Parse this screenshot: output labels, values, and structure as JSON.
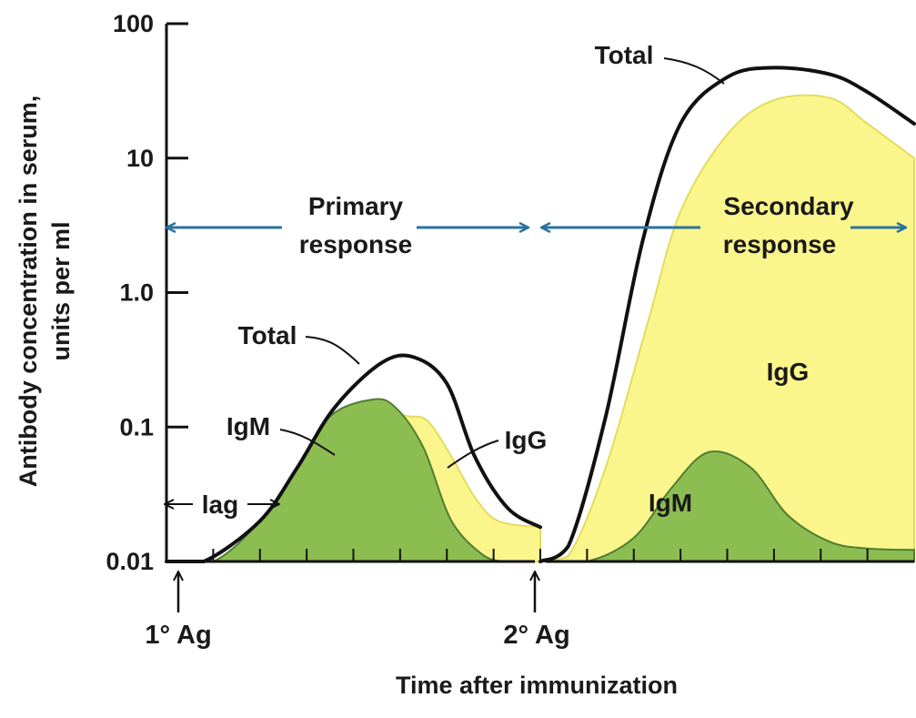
{
  "chart_data": {
    "type": "area",
    "yscale": "log",
    "ylim": [
      0.01,
      100
    ],
    "xlim": [
      0,
      16
    ],
    "xlabel": "Time after immunization",
    "ylabel_lines": [
      "Antibody concentration in serum,",
      "units per ml"
    ],
    "y_ticks": [
      {
        "value": 100,
        "label": "100"
      },
      {
        "value": 10,
        "label": "10"
      },
      {
        "value": 1,
        "label": "1.0"
      },
      {
        "value": 0.1,
        "label": "0.1"
      },
      {
        "value": 0.01,
        "label": "0.01"
      }
    ],
    "x_ticks": [
      1,
      2,
      3,
      4,
      5,
      6,
      7,
      8,
      9,
      10,
      11,
      12,
      13,
      14,
      15
    ],
    "colors": {
      "igm": "#8cbd50",
      "igm_edge": "#4f7d33",
      "igg": "#fbf68c",
      "igg_edge": "#e4dc5c",
      "total": "#111111",
      "arrow": "#2b73a0"
    },
    "primary": {
      "range": [
        0,
        8
      ],
      "total": {
        "x": [
          0,
          0.8,
          2,
          2.8,
          3.6,
          4.6,
          5.3,
          6,
          6.6,
          7.3,
          8
        ],
        "y": [
          0.01,
          0.01,
          0.02,
          0.05,
          0.14,
          0.3,
          0.33,
          0.21,
          0.06,
          0.025,
          0.018
        ]
      },
      "igm": {
        "x": [
          0,
          1,
          2,
          2.8,
          3.5,
          4.4,
          4.9,
          5.5,
          6.1,
          6.8,
          7.2
        ],
        "y": [
          0.01,
          0.01,
          0.02,
          0.05,
          0.12,
          0.16,
          0.14,
          0.07,
          0.02,
          0.011,
          0.01
        ]
      },
      "igg": {
        "x": [
          4.3,
          4.8,
          5.2,
          5.6,
          6.1,
          6.6,
          7.1,
          8
        ],
        "y": [
          0.09,
          0.12,
          0.12,
          0.11,
          0.06,
          0.03,
          0.02,
          0.018
        ]
      }
    },
    "secondary": {
      "range": [
        8,
        16
      ],
      "total": {
        "x": [
          8,
          8.6,
          9.4,
          10.2,
          11,
          12,
          13,
          14.2,
          15,
          16
        ],
        "y": [
          0.01,
          0.013,
          0.12,
          2.5,
          18,
          40,
          47,
          42,
          31,
          18
        ]
      },
      "igg": {
        "x": [
          8,
          8.6,
          9.4,
          10.3,
          11,
          12,
          13,
          14.2,
          15,
          16
        ],
        "y": [
          0.01,
          0.011,
          0.05,
          0.6,
          4,
          15,
          27,
          28,
          18,
          10
        ]
      },
      "igm": {
        "x": [
          8,
          9,
          10,
          10.8,
          11.6,
          12.5,
          13.3,
          14.2,
          15,
          16
        ],
        "y": [
          0.01,
          0.01,
          0.015,
          0.035,
          0.065,
          0.05,
          0.022,
          0.014,
          0.0125,
          0.0122
        ]
      }
    },
    "annotations": {
      "primary_total": "Total",
      "primary_igm": "IgM",
      "primary_igg": "IgG",
      "lag": "lag",
      "primary_response": [
        "Primary",
        "response"
      ],
      "secondary_total": "Total",
      "secondary_igg": "IgG",
      "secondary_igm": "IgM",
      "secondary_response": [
        "Secondary",
        "response"
      ]
    },
    "antigen_markers": [
      {
        "x": 0,
        "label": "1° Ag"
      },
      {
        "x": 8,
        "label": "2° Ag"
      }
    ]
  }
}
